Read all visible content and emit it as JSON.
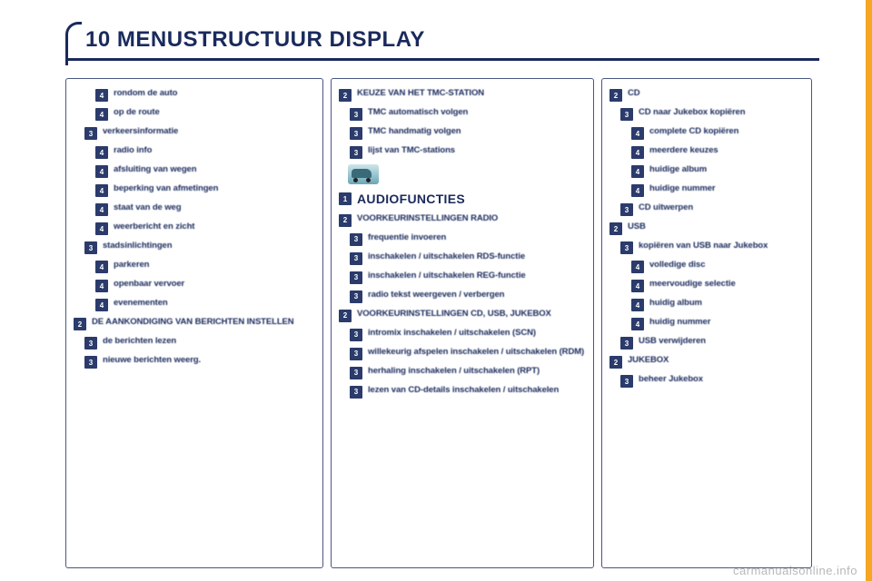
{
  "colors": {
    "accent": "#f5a623",
    "primary": "#1a2a5c",
    "box": "#2b3b6b",
    "border": "#4a5680",
    "watermark": "#b8b8b8"
  },
  "watermark": "carmanualsonline.info",
  "title": "10 MENUSTRUCTUUR DISPLAY",
  "columns": [
    {
      "items": [
        {
          "level": 4,
          "text": "rondom de auto"
        },
        {
          "level": 4,
          "text": "op de route"
        },
        {
          "level": 3,
          "text": "verkeersinformatie"
        },
        {
          "level": 4,
          "text": "radio info"
        },
        {
          "level": 4,
          "text": "afsluiting van wegen"
        },
        {
          "level": 4,
          "text": "beperking van afmetingen"
        },
        {
          "level": 4,
          "text": "staat van de weg"
        },
        {
          "level": 4,
          "text": "weerbericht en zicht"
        },
        {
          "level": 3,
          "text": "stadsinlichtingen"
        },
        {
          "level": 4,
          "text": "parkeren"
        },
        {
          "level": 4,
          "text": "openbaar vervoer"
        },
        {
          "level": 4,
          "text": "evenementen"
        },
        {
          "level": 2,
          "text": "DE AANKONDIGING VAN BERICHTEN INSTELLEN"
        },
        {
          "level": 3,
          "text": "de berichten lezen"
        },
        {
          "level": 3,
          "text": "nieuwe berichten weerg."
        }
      ]
    },
    {
      "items": [
        {
          "level": 2,
          "text": "KEUZE VAN HET TMC-STATION"
        },
        {
          "level": 3,
          "text": "TMC automatisch volgen"
        },
        {
          "level": 3,
          "text": "TMC handmatig volgen"
        },
        {
          "level": 3,
          "text": "lijst van TMC-stations"
        },
        {
          "type": "icon"
        },
        {
          "level": 1,
          "text": "AUDIOFUNCTIES",
          "big": true
        },
        {
          "level": 2,
          "text": "VOORKEURINSTELLINGEN RADIO"
        },
        {
          "level": 3,
          "text": "frequentie invoeren"
        },
        {
          "level": 3,
          "text": "inschakelen / uitschakelen RDS-functie"
        },
        {
          "level": 3,
          "text": "inschakelen / uitschakelen REG-functie"
        },
        {
          "level": 3,
          "text": "radio tekst weergeven / verbergen"
        },
        {
          "level": 2,
          "text": "VOORKEURINSTELLINGEN CD, USB, JUKEBOX"
        },
        {
          "level": 3,
          "text": "intromix inschakelen / uitschakelen (SCN)"
        },
        {
          "level": 3,
          "text": "willekeurig afspelen inschakelen / uitschakelen (RDM)"
        },
        {
          "level": 3,
          "text": "herhaling inschakelen / uitschakelen (RPT)"
        },
        {
          "level": 3,
          "text": "lezen van CD-details inschakelen / uitschakelen"
        }
      ]
    },
    {
      "items": [
        {
          "level": 2,
          "text": "CD"
        },
        {
          "level": 3,
          "text": "CD naar Jukebox kopiëren"
        },
        {
          "level": 4,
          "text": "complete CD kopiëren"
        },
        {
          "level": 4,
          "text": "meerdere keuzes"
        },
        {
          "level": 4,
          "text": "huidige album"
        },
        {
          "level": 4,
          "text": "huidige nummer"
        },
        {
          "level": 3,
          "text": "CD uitwerpen"
        },
        {
          "level": 2,
          "text": "USB"
        },
        {
          "level": 3,
          "text": "kopiëren van USB naar Jukebox"
        },
        {
          "level": 4,
          "text": "volledige disc"
        },
        {
          "level": 4,
          "text": "meervoudige selectie"
        },
        {
          "level": 4,
          "text": "huidig album"
        },
        {
          "level": 4,
          "text": "huidig nummer"
        },
        {
          "level": 3,
          "text": "USB verwijderen"
        },
        {
          "level": 2,
          "text": "JUKEBOX"
        },
        {
          "level": 3,
          "text": "beheer Jukebox"
        }
      ]
    }
  ]
}
